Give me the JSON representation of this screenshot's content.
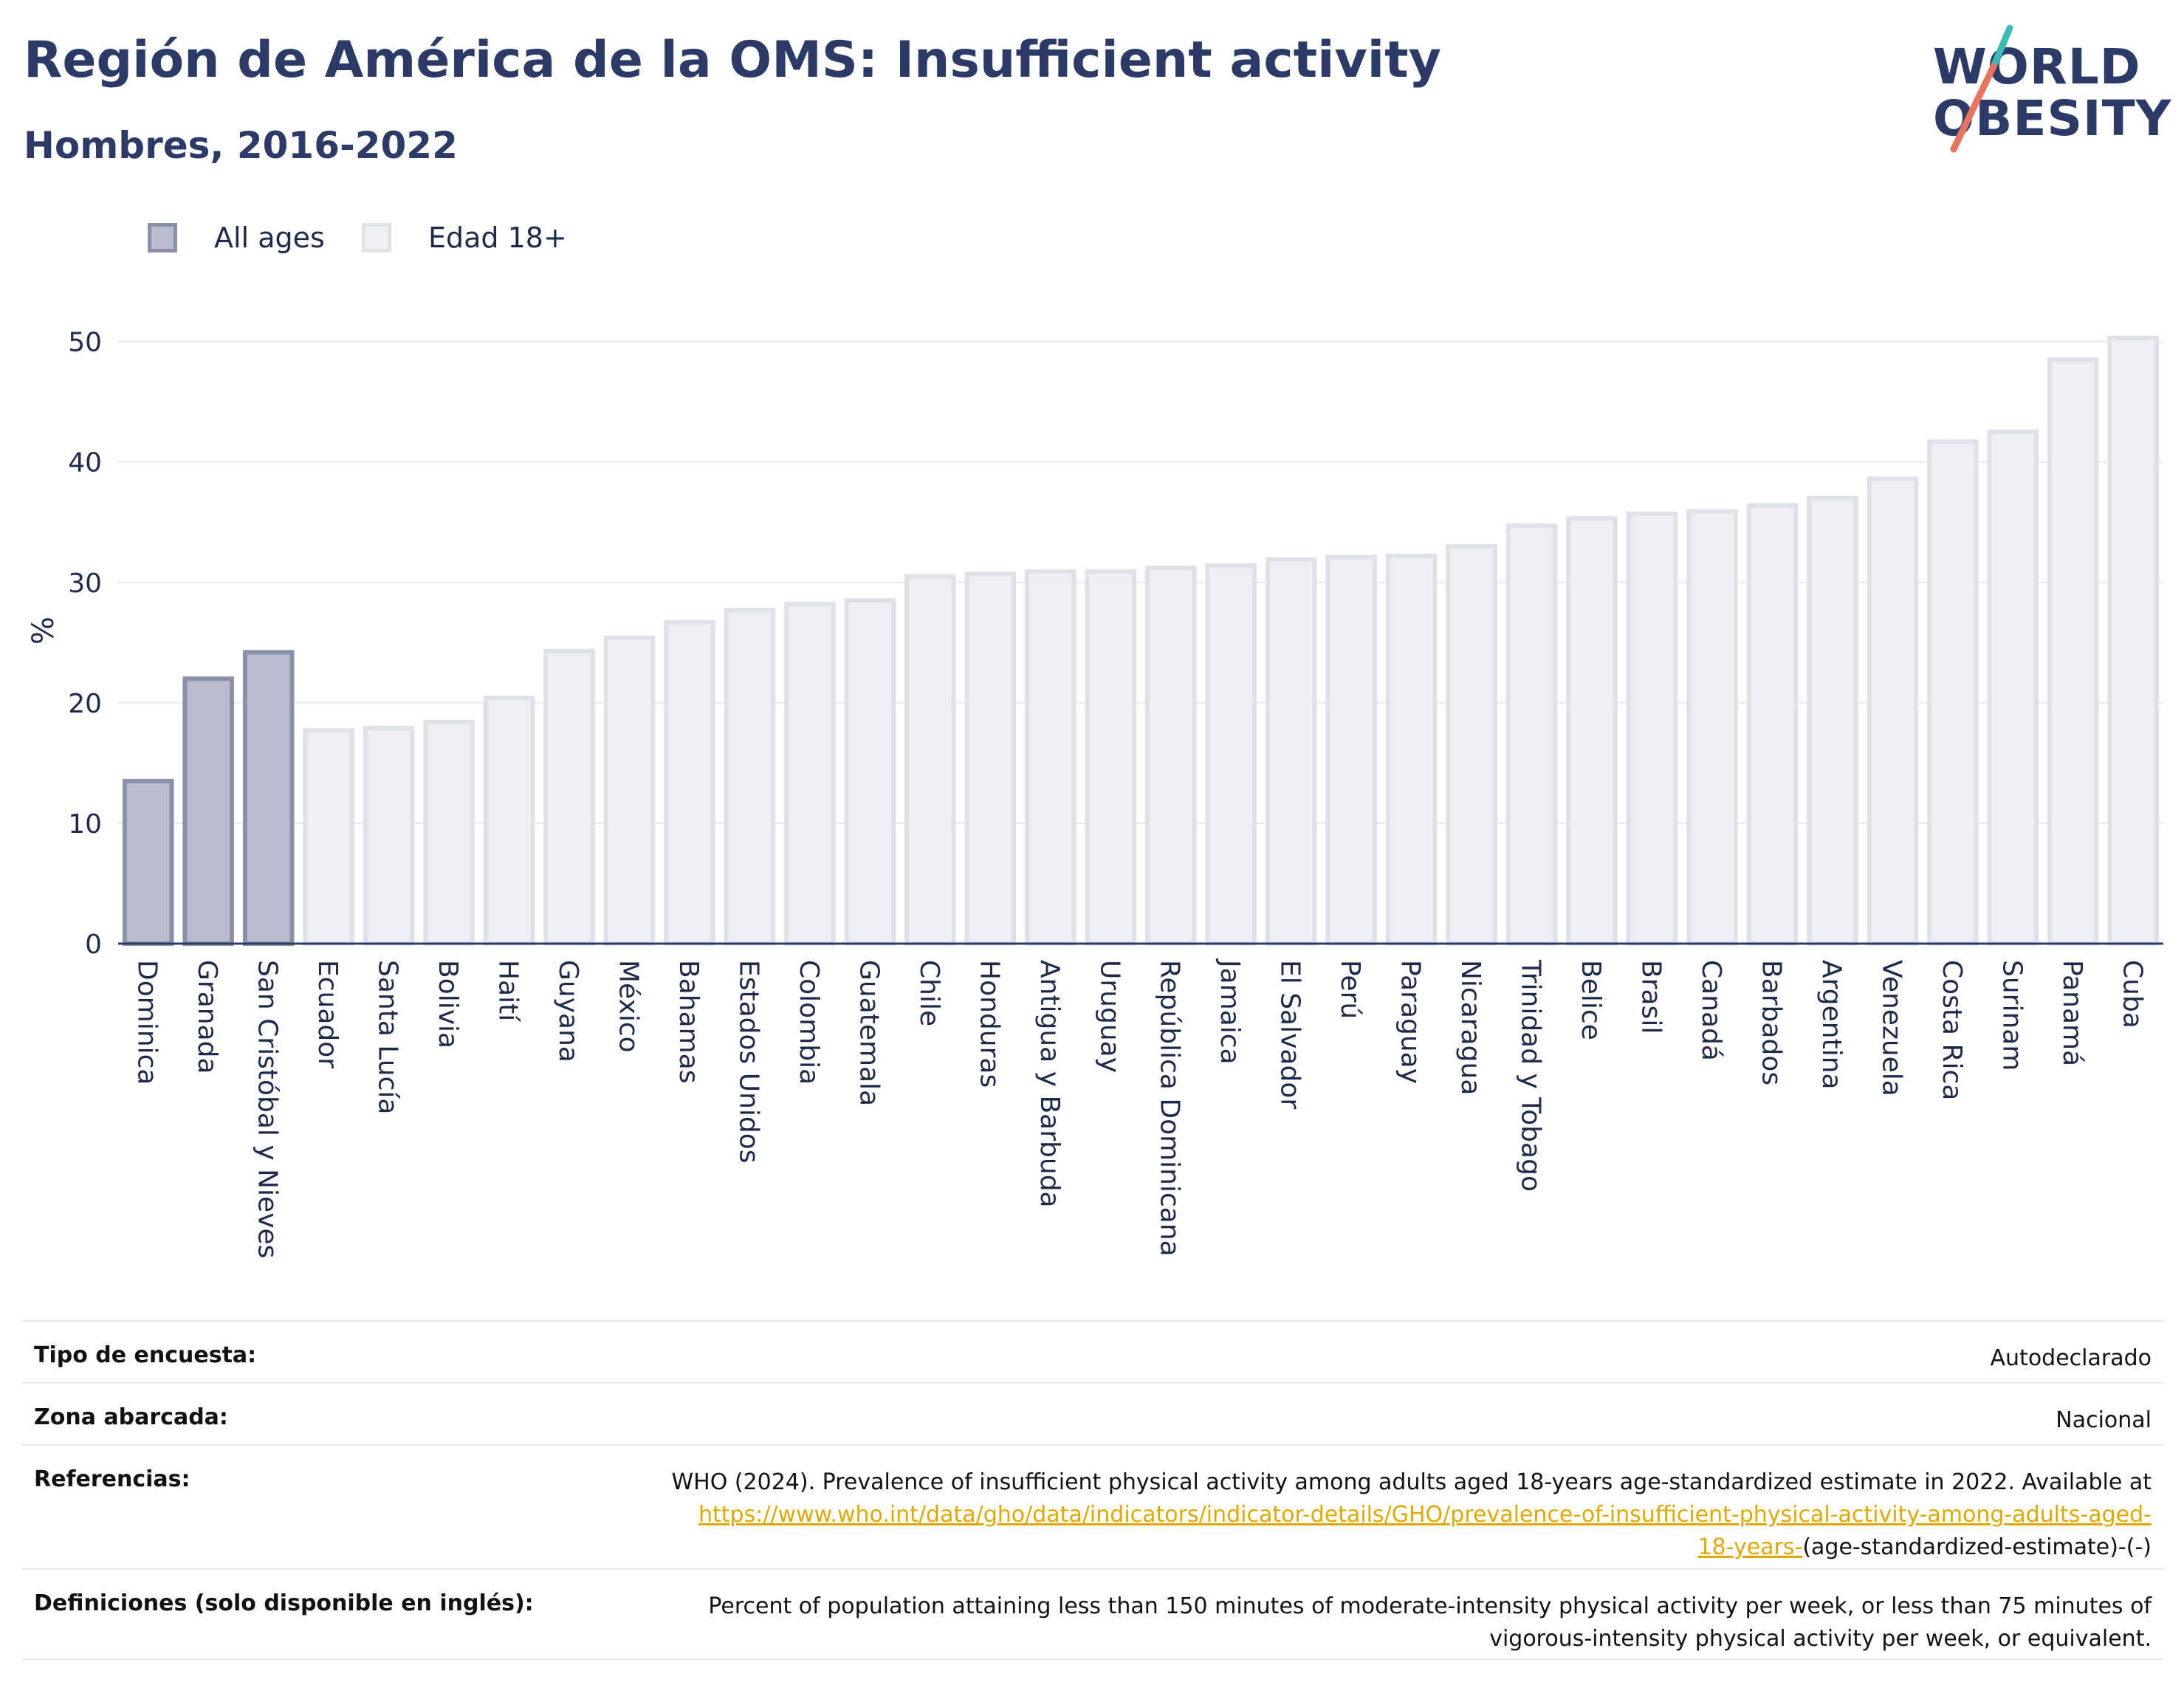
{
  "header": {
    "title": "Región de América de la OMS: Insufficient activity",
    "subtitle": "Hombres, 2016-2022"
  },
  "logo": {
    "line1": "WORLD",
    "line2": "OBESITY",
    "accent_teal": "#3cbcb4",
    "accent_coral": "#e8735f"
  },
  "legend": [
    {
      "label": "All ages",
      "fill": "#b9bccd",
      "stroke": "#8a90a8"
    },
    {
      "label": "Edad 18+",
      "fill": "#eeeff3",
      "stroke": "#dfe1e8"
    }
  ],
  "chart_data": {
    "type": "bar",
    "ylabel": "%",
    "ylim": [
      0,
      52
    ],
    "yticks": [
      0,
      10,
      20,
      30,
      40,
      50
    ],
    "grid": true,
    "legend_position": "top-left",
    "categories": [
      "Dominica",
      "Granada",
      "San Cristóbal y Nieves",
      "Ecuador",
      "Santa Lucía",
      "Bolivia",
      "Haití",
      "Guyana",
      "México",
      "Bahamas",
      "Estados Unidos",
      "Colombia",
      "Guatemala",
      "Chile",
      "Honduras",
      "Antigua y Barbuda",
      "Uruguay",
      "República Dominicana",
      "Jamaica",
      "El Salvador",
      "Perú",
      "Paraguay",
      "Nicaragua",
      "Trinidad y Tobago",
      "Belice",
      "Brasil",
      "Canadá",
      "Barbados",
      "Argentina",
      "Venezuela",
      "Costa Rica",
      "Surinam",
      "Panamá",
      "Cuba"
    ],
    "values": [
      13.5,
      22.0,
      24.2,
      17.7,
      17.9,
      18.4,
      20.4,
      24.3,
      25.4,
      26.7,
      27.7,
      28.2,
      28.5,
      30.5,
      30.7,
      30.9,
      30.9,
      31.2,
      31.4,
      31.9,
      32.1,
      32.2,
      33.0,
      34.7,
      35.3,
      35.7,
      35.9,
      36.4,
      37.0,
      38.6,
      41.7,
      42.5,
      48.5,
      50.3
    ],
    "groups": [
      "All ages",
      "All ages",
      "All ages",
      "Edad 18+",
      "Edad 18+",
      "Edad 18+",
      "Edad 18+",
      "Edad 18+",
      "Edad 18+",
      "Edad 18+",
      "Edad 18+",
      "Edad 18+",
      "Edad 18+",
      "Edad 18+",
      "Edad 18+",
      "Edad 18+",
      "Edad 18+",
      "Edad 18+",
      "Edad 18+",
      "Edad 18+",
      "Edad 18+",
      "Edad 18+",
      "Edad 18+",
      "Edad 18+",
      "Edad 18+",
      "Edad 18+",
      "Edad 18+",
      "Edad 18+",
      "Edad 18+",
      "Edad 18+",
      "Edad 18+",
      "Edad 18+",
      "Edad 18+",
      "Edad 18+"
    ]
  },
  "meta": {
    "survey_type_label": "Tipo de encuesta:",
    "survey_type_value": "Autodeclarado",
    "area_label": "Zona abarcada:",
    "area_value": "Nacional",
    "references_label": "Referencias:",
    "references_text": "WHO (2024). Prevalence of insufficient physical activity among adults aged 18-years age-standardized estimate in 2022. Available at",
    "references_link_part1": "https://www.who.int/data/gho/data/indicators/indicator-details/GHO/prevalence-of-insufficient-physical-activity-among-adults-aged-",
    "references_link_part2": "18-years-",
    "references_suffix": "(age-standardized-estimate)-(-)",
    "definitions_label": "Definiciones (solo disponible en inglés):",
    "definitions_line1": "Percent of population attaining less than 150 minutes of moderate-intensity physical activity per week, or less than 75 minutes of",
    "definitions_line2": "vigorous-intensity physical activity per week, or equivalent."
  }
}
